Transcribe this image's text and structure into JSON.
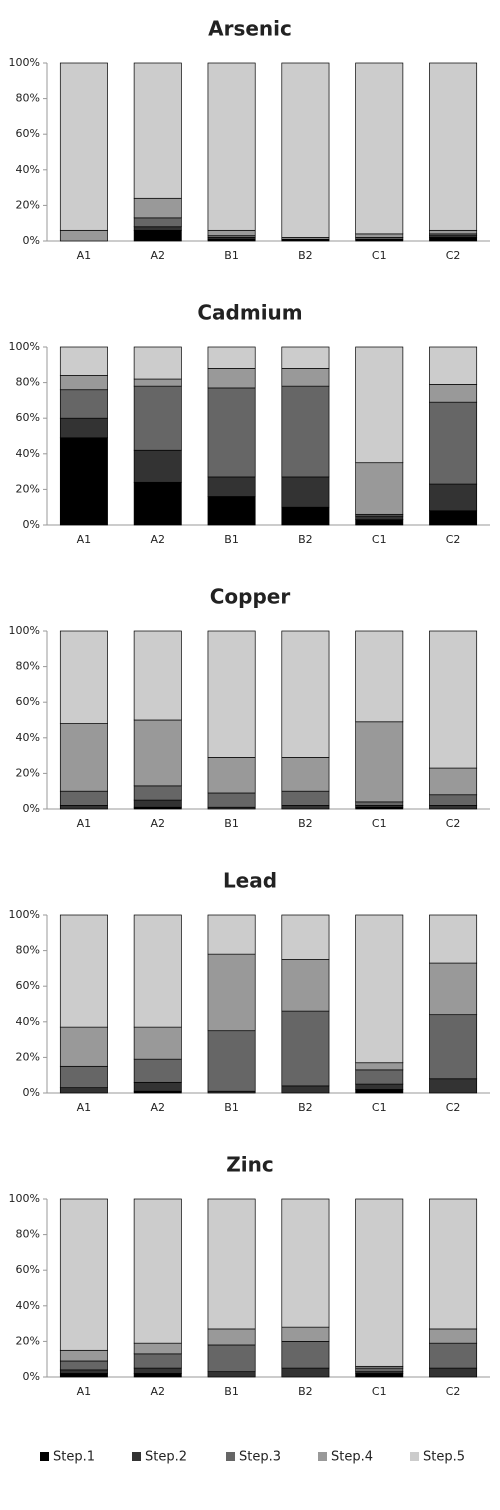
{
  "chart_data": [
    {
      "type": "bar",
      "stacked": true,
      "title": "Arsenic",
      "categories": [
        "A1",
        "A2",
        "B1",
        "B2",
        "C1",
        "C2"
      ],
      "series": [
        {
          "values": [
            0,
            6,
            1,
            1,
            1,
            2
          ]
        },
        {
          "values": [
            0,
            2,
            1,
            0,
            0,
            1
          ]
        },
        {
          "values": [
            0,
            5,
            1,
            0,
            1,
            1
          ]
        },
        {
          "values": [
            6,
            11,
            3,
            1,
            2,
            2
          ]
        },
        {
          "values": [
            94,
            76,
            94,
            98,
            96,
            94
          ]
        }
      ],
      "ylim": [
        0,
        100
      ],
      "yticks": [
        {
          "value": 0,
          "label": "0%"
        },
        {
          "value": 20,
          "label": "20%"
        },
        {
          "value": 40,
          "label": "40%"
        },
        {
          "value": 60,
          "label": "60%"
        },
        {
          "value": 80,
          "label": "80%"
        },
        {
          "value": 100,
          "label": "100%"
        }
      ]
    },
    {
      "type": "bar",
      "stacked": true,
      "title": "Cadmium",
      "categories": [
        "A1",
        "A2",
        "B1",
        "B2",
        "C1",
        "C2"
      ],
      "series": [
        {
          "values": [
            49,
            24,
            16,
            10,
            3,
            8
          ]
        },
        {
          "values": [
            11,
            18,
            11,
            17,
            2,
            15
          ]
        },
        {
          "values": [
            16,
            36,
            50,
            51,
            1,
            46
          ]
        },
        {
          "values": [
            8,
            4,
            11,
            10,
            29,
            10
          ]
        },
        {
          "values": [
            16,
            18,
            12,
            12,
            65,
            21
          ]
        }
      ],
      "ylim": [
        0,
        100
      ],
      "yticks": [
        {
          "value": 0,
          "label": "0%"
        },
        {
          "value": 20,
          "label": "20%"
        },
        {
          "value": 40,
          "label": "40%"
        },
        {
          "value": 60,
          "label": "60%"
        },
        {
          "value": 80,
          "label": "80%"
        },
        {
          "value": 100,
          "label": "100%"
        }
      ]
    },
    {
      "type": "bar",
      "stacked": true,
      "title": "Copper",
      "categories": [
        "A1",
        "A2",
        "B1",
        "B2",
        "C1",
        "C2"
      ],
      "series": [
        {
          "values": [
            0,
            1,
            0,
            0,
            1,
            0
          ]
        },
        {
          "values": [
            2,
            4,
            1,
            2,
            1,
            2
          ]
        },
        {
          "values": [
            8,
            8,
            8,
            8,
            2,
            6
          ]
        },
        {
          "values": [
            38,
            37,
            20,
            19,
            45,
            15
          ]
        },
        {
          "values": [
            52,
            50,
            71,
            71,
            51,
            77
          ]
        }
      ],
      "ylim": [
        0,
        100
      ],
      "yticks": [
        {
          "value": 0,
          "label": "0%"
        },
        {
          "value": 20,
          "label": "20%"
        },
        {
          "value": 40,
          "label": "40%"
        },
        {
          "value": 60,
          "label": "60%"
        },
        {
          "value": 80,
          "label": "80%"
        },
        {
          "value": 100,
          "label": "100%"
        }
      ]
    },
    {
      "type": "bar",
      "stacked": true,
      "title": "Lead",
      "categories": [
        "A1",
        "A2",
        "B1",
        "B2",
        "C1",
        "C2"
      ],
      "series": [
        {
          "values": [
            0,
            1,
            0,
            0,
            2,
            0
          ]
        },
        {
          "values": [
            3,
            5,
            1,
            4,
            3,
            8
          ]
        },
        {
          "values": [
            12,
            13,
            34,
            42,
            8,
            36
          ]
        },
        {
          "values": [
            22,
            18,
            43,
            29,
            4,
            29
          ]
        },
        {
          "values": [
            63,
            63,
            22,
            25,
            83,
            27
          ]
        }
      ],
      "ylim": [
        0,
        100
      ],
      "yticks": [
        {
          "value": 0,
          "label": "0%"
        },
        {
          "value": 20,
          "label": "20%"
        },
        {
          "value": 40,
          "label": "40%"
        },
        {
          "value": 60,
          "label": "60%"
        },
        {
          "value": 80,
          "label": "80%"
        },
        {
          "value": 100,
          "label": "100%"
        }
      ]
    },
    {
      "type": "bar",
      "stacked": true,
      "title": "Zinc",
      "categories": [
        "A1",
        "A2",
        "B1",
        "B2",
        "C1",
        "C2"
      ],
      "series": [
        {
          "values": [
            2,
            2,
            0,
            0,
            2,
            0
          ]
        },
        {
          "values": [
            2,
            3,
            3,
            5,
            1,
            5
          ]
        },
        {
          "values": [
            5,
            8,
            15,
            15,
            2,
            14
          ]
        },
        {
          "values": [
            6,
            6,
            9,
            8,
            1,
            8
          ]
        },
        {
          "values": [
            85,
            81,
            73,
            72,
            94,
            73
          ]
        }
      ],
      "ylim": [
        0,
        100
      ],
      "yticks": [
        {
          "value": 0,
          "label": "0%"
        },
        {
          "value": 20,
          "label": "20%"
        },
        {
          "value": 40,
          "label": "40%"
        },
        {
          "value": 60,
          "label": "60%"
        },
        {
          "value": 80,
          "label": "80%"
        },
        {
          "value": 100,
          "label": "100%"
        }
      ]
    }
  ],
  "legend": [
    {
      "name": "Step.1",
      "color": "#000000"
    },
    {
      "name": "Step.2",
      "color": "#333333"
    },
    {
      "name": "Step.3",
      "color": "#666666"
    },
    {
      "name": "Step.4",
      "color": "#999999"
    },
    {
      "name": "Step.5",
      "color": "#cccccc"
    }
  ]
}
